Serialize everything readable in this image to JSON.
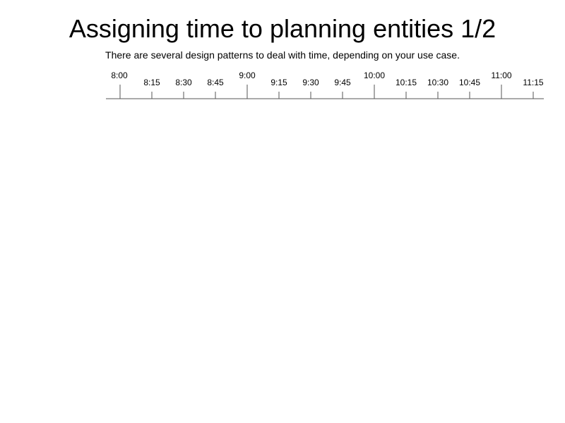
{
  "title": "Assigning time to planning entities 1/2",
  "subtitle": "There are several design patterns to deal with time, depending on your use case.",
  "timeline": {
    "ticks": [
      {
        "label": "8:00",
        "major": true
      },
      {
        "label": "8:15",
        "major": false
      },
      {
        "label": "8:30",
        "major": false
      },
      {
        "label": "8:45",
        "major": false
      },
      {
        "label": "9:00",
        "major": true
      },
      {
        "label": "9:15",
        "major": false
      },
      {
        "label": "9:30",
        "major": false
      },
      {
        "label": "9:45",
        "major": false
      },
      {
        "label": "10:00",
        "major": true
      },
      {
        "label": "10:15",
        "major": false
      },
      {
        "label": "10:30",
        "major": false
      },
      {
        "label": "10:45",
        "major": false
      },
      {
        "label": "11:00",
        "major": true
      },
      {
        "label": "11:15",
        "major": false
      }
    ],
    "line_color": "#555555"
  }
}
